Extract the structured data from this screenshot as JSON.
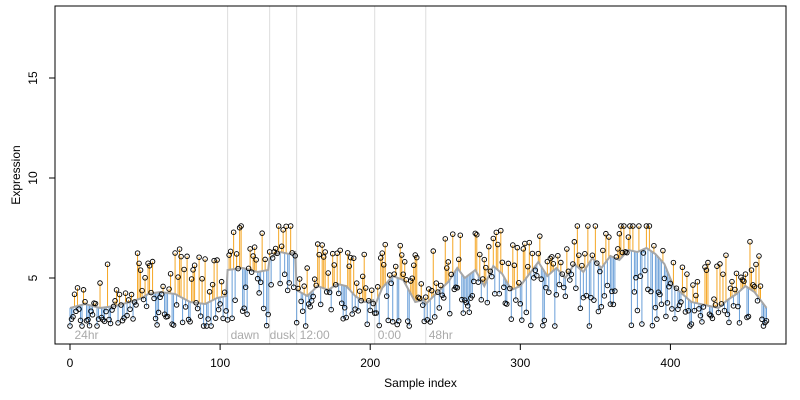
{
  "chart_data": {
    "type": "scatter",
    "xlabel": "Sample index",
    "ylabel": "Expression",
    "xlim": [
      -10,
      477
    ],
    "ylim": [
      1.7,
      18.6
    ],
    "x_ticks": [
      0,
      100,
      200,
      300,
      400
    ],
    "y_ticks": [
      5,
      10,
      15
    ],
    "grid": false,
    "colors": {
      "above": "#f5a623",
      "below": "#6a9fd8",
      "fitted": "#a6a6a6",
      "section_line": "#dddddd",
      "section_text": "#aaaaaa",
      "point_stroke": "#000000"
    },
    "section_boundaries": [
      105,
      133,
      151,
      203,
      237
    ],
    "section_labels": [
      {
        "x": 3,
        "label": "24hr"
      },
      {
        "x": 107,
        "label": "dawn"
      },
      {
        "x": 133,
        "label": "dusk"
      },
      {
        "x": 153,
        "label": "12:00"
      },
      {
        "x": 205,
        "label": "0:00"
      },
      {
        "x": 239,
        "label": "48hr"
      }
    ],
    "fitted_anchors": [
      [
        0,
        3.5
      ],
      [
        10,
        3.7
      ],
      [
        20,
        3.5
      ],
      [
        30,
        3.6
      ],
      [
        40,
        3.8
      ],
      [
        48,
        4.0
      ],
      [
        52,
        4.2
      ],
      [
        60,
        4.3
      ],
      [
        70,
        4.2
      ],
      [
        80,
        3.8
      ],
      [
        90,
        3.7
      ],
      [
        98,
        4.0
      ],
      [
        104,
        4.1
      ],
      [
        105,
        5.4
      ],
      [
        115,
        5.5
      ],
      [
        125,
        5.3
      ],
      [
        132,
        5.4
      ],
      [
        133,
        6.0
      ],
      [
        140,
        6.3
      ],
      [
        146,
        6.2
      ],
      [
        150,
        6.3
      ],
      [
        151,
        4.4
      ],
      [
        158,
        4.1
      ],
      [
        165,
        4.6
      ],
      [
        172,
        4.4
      ],
      [
        178,
        4.7
      ],
      [
        184,
        4.6
      ],
      [
        190,
        4.1
      ],
      [
        196,
        3.8
      ],
      [
        202,
        3.9
      ],
      [
        203,
        3.6
      ],
      [
        208,
        4.5
      ],
      [
        215,
        5.1
      ],
      [
        222,
        4.9
      ],
      [
        230,
        3.8
      ],
      [
        236,
        3.9
      ],
      [
        237,
        3.7
      ],
      [
        245,
        4.3
      ],
      [
        252,
        4.8
      ],
      [
        258,
        5.5
      ],
      [
        263,
        5.0
      ],
      [
        270,
        5.4
      ],
      [
        276,
        4.6
      ],
      [
        282,
        5.6
      ],
      [
        288,
        5.2
      ],
      [
        294,
        4.4
      ],
      [
        300,
        4.6
      ],
      [
        306,
        5.2
      ],
      [
        312,
        5.8
      ],
      [
        318,
        5.1
      ],
      [
        324,
        5.5
      ],
      [
        330,
        5.0
      ],
      [
        336,
        5.7
      ],
      [
        342,
        5.3
      ],
      [
        348,
        6.0
      ],
      [
        354,
        5.5
      ],
      [
        360,
        6.1
      ],
      [
        366,
        5.9
      ],
      [
        372,
        6.4
      ],
      [
        378,
        6.3
      ],
      [
        384,
        6.5
      ],
      [
        390,
        6.2
      ],
      [
        396,
        5.7
      ],
      [
        402,
        4.6
      ],
      [
        408,
        4.2
      ],
      [
        414,
        3.8
      ],
      [
        420,
        3.7
      ],
      [
        426,
        3.6
      ],
      [
        432,
        3.5
      ],
      [
        438,
        3.9
      ],
      [
        444,
        4.2
      ],
      [
        450,
        4.6
      ],
      [
        456,
        4.3
      ],
      [
        464,
        3.5
      ]
    ],
    "observed_x_range": [
      0,
      464
    ],
    "observed_y_estimated_range": [
      2.6,
      7.6
    ]
  }
}
